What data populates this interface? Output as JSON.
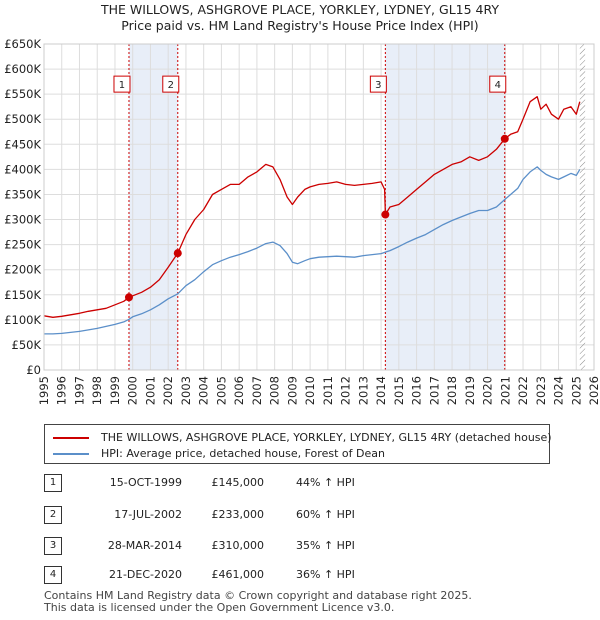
{
  "title_line1": "THE WILLOWS, ASHGROVE PLACE, YORKLEY, LYDNEY, GL15 4RY",
  "title_line2": "Price paid vs. HM Land Registry's House Price Index (HPI)",
  "colors": {
    "property": "#cc0000",
    "hpi": "#5b8fc9",
    "shade": "#e8eef8",
    "vline": "#cc0000",
    "grid": "#dddddd"
  },
  "legend": {
    "property": "THE WILLOWS, ASHGROVE PLACE, YORKLEY, LYDNEY, GL15 4RY (detached house)",
    "hpi": "HPI: Average price, detached house, Forest of Dean"
  },
  "transactions": [
    {
      "id": "1",
      "date": "15-OCT-1999",
      "price": "£145,000",
      "hpi": "44% ↑ HPI"
    },
    {
      "id": "2",
      "date": "17-JUL-2002",
      "price": "£233,000",
      "hpi": "60% ↑ HPI"
    },
    {
      "id": "3",
      "date": "28-MAR-2014",
      "price": "£310,000",
      "hpi": "35% ↑ HPI"
    },
    {
      "id": "4",
      "date": "21-DEC-2020",
      "price": "£461,000",
      "hpi": "36% ↑ HPI"
    }
  ],
  "footer": {
    "line1": "Contains HM Land Registry data © Crown copyright and database right 2025.",
    "line2": "This data is licensed under the Open Government Licence v3.0."
  },
  "chart_data": {
    "type": "line",
    "title": "THE WILLOWS, ASHGROVE PLACE, YORKLEY, LYDNEY, GL15 4RY — Price paid vs. HM Land Registry's House Price Index (HPI)",
    "xlabel": "",
    "ylabel": "",
    "xlim": [
      1995,
      2026
    ],
    "ylim": [
      0,
      650000
    ],
    "x_ticks": [
      1995,
      1996,
      1997,
      1998,
      1999,
      2000,
      2001,
      2002,
      2003,
      2004,
      2005,
      2006,
      2007,
      2008,
      2009,
      2010,
      2011,
      2012,
      2013,
      2014,
      2015,
      2016,
      2017,
      2018,
      2019,
      2020,
      2021,
      2022,
      2023,
      2024,
      2025,
      2026
    ],
    "y_ticks": [
      0,
      50000,
      100000,
      150000,
      200000,
      250000,
      300000,
      350000,
      400000,
      450000,
      500000,
      550000,
      600000,
      650000
    ],
    "y_tick_labels": [
      "£0",
      "£50K",
      "£100K",
      "£150K",
      "£200K",
      "£250K",
      "£300K",
      "£350K",
      "£400K",
      "£450K",
      "£500K",
      "£550K",
      "£600K",
      "£650K"
    ],
    "shaded_spans": [
      [
        1999.79,
        2002.54
      ],
      [
        2014.24,
        2020.97
      ]
    ],
    "hatched_future_from": 2025.2,
    "sale_markers": [
      {
        "label": "1",
        "x": 1999.79,
        "y": 145000
      },
      {
        "label": "2",
        "x": 2002.54,
        "y": 233000
      },
      {
        "label": "3",
        "x": 2014.24,
        "y": 310000
      },
      {
        "label": "4",
        "x": 2020.97,
        "y": 461000
      }
    ],
    "marker_label_y": 570000,
    "series": [
      {
        "name": "THE WILLOWS, ASHGROVE PLACE, YORKLEY, LYDNEY, GL15 4RY (detached house)",
        "x": [
          1995,
          1995.5,
          1996,
          1996.5,
          1997,
          1997.5,
          1998,
          1998.5,
          1999,
          1999.5,
          1999.79,
          2000,
          2000.5,
          2001,
          2001.5,
          2002,
          2002.54,
          2003,
          2003.5,
          2004,
          2004.5,
          2005,
          2005.5,
          2006,
          2006.5,
          2007,
          2007.5,
          2007.9,
          2008.3,
          2008.7,
          2009,
          2009.3,
          2009.7,
          2010,
          2010.5,
          2011,
          2011.5,
          2012,
          2012.5,
          2013,
          2013.5,
          2014,
          2014.2,
          2014.24,
          2014.5,
          2015,
          2015.5,
          2016,
          2016.5,
          2017,
          2017.5,
          2018,
          2018.5,
          2019,
          2019.5,
          2020,
          2020.5,
          2020.97,
          2021.3,
          2021.7,
          2022,
          2022.4,
          2022.8,
          2023,
          2023.3,
          2023.6,
          2024,
          2024.3,
          2024.7,
          2025,
          2025.2
        ],
        "values": [
          108000,
          105000,
          107000,
          110000,
          113000,
          117000,
          120000,
          123000,
          130000,
          137000,
          145000,
          148000,
          155000,
          165000,
          180000,
          205000,
          233000,
          270000,
          300000,
          320000,
          350000,
          360000,
          370000,
          370000,
          385000,
          395000,
          410000,
          405000,
          380000,
          345000,
          330000,
          345000,
          360000,
          365000,
          370000,
          372000,
          375000,
          370000,
          368000,
          370000,
          372000,
          375000,
          360000,
          310000,
          325000,
          330000,
          345000,
          360000,
          375000,
          390000,
          400000,
          410000,
          415000,
          425000,
          418000,
          425000,
          440000,
          461000,
          470000,
          475000,
          500000,
          535000,
          545000,
          520000,
          530000,
          510000,
          500000,
          520000,
          525000,
          510000,
          535000
        ]
      },
      {
        "name": "HPI: Average price, detached house, Forest of Dean",
        "x": [
          1995,
          1995.5,
          1996,
          1996.5,
          1997,
          1997.5,
          1998,
          1998.5,
          1999,
          1999.5,
          1999.79,
          2000,
          2000.5,
          2001,
          2001.5,
          2002,
          2002.54,
          2003,
          2003.5,
          2004,
          2004.5,
          2005,
          2005.5,
          2006,
          2006.5,
          2007,
          2007.5,
          2007.9,
          2008.3,
          2008.7,
          2009,
          2009.3,
          2009.7,
          2010,
          2010.5,
          2011,
          2011.5,
          2012,
          2012.5,
          2013,
          2013.5,
          2014,
          2014.24,
          2014.5,
          2015,
          2015.5,
          2016,
          2016.5,
          2017,
          2017.5,
          2018,
          2018.5,
          2019,
          2019.5,
          2020,
          2020.5,
          2020.97,
          2021.3,
          2021.7,
          2022,
          2022.4,
          2022.8,
          2023,
          2023.3,
          2023.6,
          2024,
          2024.3,
          2024.7,
          2025,
          2025.2
        ],
        "values": [
          72000,
          72000,
          73000,
          75000,
          77000,
          80000,
          83000,
          87000,
          91000,
          96000,
          101000,
          106000,
          112000,
          120000,
          130000,
          142000,
          152000,
          168000,
          180000,
          196000,
          210000,
          218000,
          225000,
          230000,
          236000,
          243000,
          252000,
          255000,
          248000,
          232000,
          215000,
          212000,
          218000,
          222000,
          225000,
          226000,
          227000,
          226000,
          225000,
          228000,
          230000,
          232000,
          235000,
          238000,
          246000,
          255000,
          263000,
          270000,
          280000,
          290000,
          298000,
          305000,
          312000,
          318000,
          318000,
          325000,
          340000,
          350000,
          362000,
          380000,
          395000,
          405000,
          398000,
          390000,
          385000,
          380000,
          385000,
          392000,
          388000,
          400000
        ]
      }
    ]
  }
}
